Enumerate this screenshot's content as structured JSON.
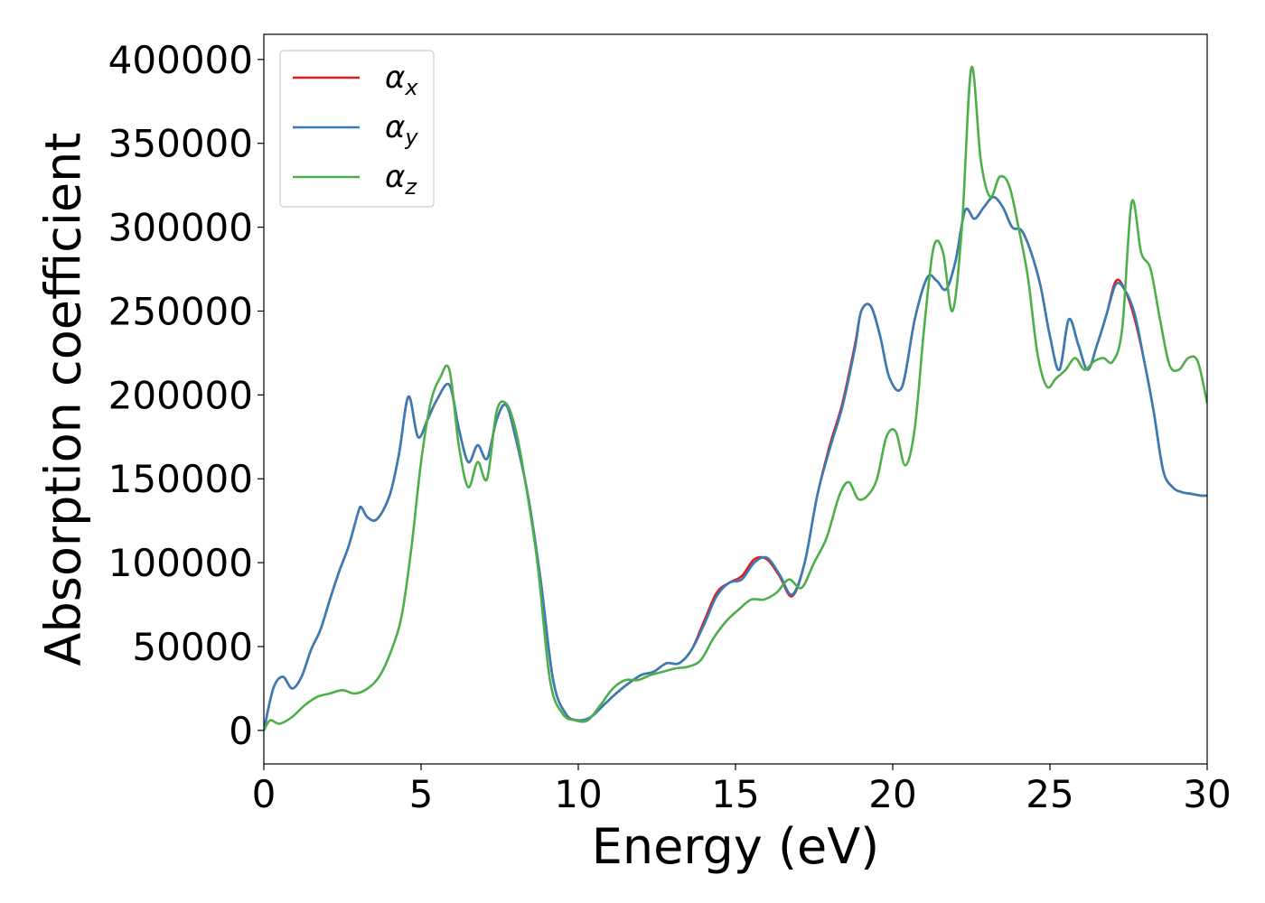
{
  "chart_data": {
    "type": "line",
    "xlabel": "Energy (eV)",
    "ylabel": "Absorption coefficient",
    "xlim": [
      0,
      30
    ],
    "ylim": [
      -20000,
      415000
    ],
    "xticks": [
      0,
      5,
      10,
      15,
      20,
      25,
      30
    ],
    "xtick_labels": [
      "0",
      "5",
      "10",
      "15",
      "20",
      "25",
      "30"
    ],
    "yticks": [
      0,
      50000,
      100000,
      150000,
      200000,
      250000,
      300000,
      350000,
      400000
    ],
    "ytick_labels": [
      "0",
      "50000",
      "100000",
      "150000",
      "200000",
      "250000",
      "300000",
      "350000",
      "400000"
    ],
    "grid": false,
    "legend_position": "top-left",
    "series": [
      {
        "name": "α",
        "subscript": "x",
        "color": "#e41a1c",
        "x": [
          0,
          0.3,
          0.6,
          0.9,
          1.2,
          1.5,
          1.8,
          2.1,
          2.4,
          2.7,
          3.0,
          3.1,
          3.3,
          3.6,
          4.0,
          4.3,
          4.6,
          4.9,
          5.2,
          5.5,
          5.9,
          6.2,
          6.5,
          6.8,
          7.1,
          7.4,
          7.7,
          8.0,
          8.4,
          8.8,
          9.2,
          9.6,
          10.0,
          10.4,
          10.8,
          11.2,
          11.6,
          12.0,
          12.4,
          12.8,
          13.2,
          13.6,
          14.0,
          14.4,
          14.8,
          15.2,
          15.6,
          16.0,
          16.4,
          16.8,
          17.2,
          17.6,
          18.0,
          18.4,
          18.8,
          19.0,
          19.3,
          19.6,
          19.9,
          20.3,
          20.7,
          21.1,
          21.4,
          21.7,
          22.0,
          22.3,
          22.6,
          22.9,
          23.2,
          23.5,
          23.8,
          24.1,
          24.4,
          24.7,
          25.0,
          25.3,
          25.6,
          25.9,
          26.2,
          26.5,
          26.8,
          27.1,
          27.4,
          27.7,
          28.0,
          28.3,
          28.6,
          28.9,
          29.2,
          29.5,
          29.8,
          30.0
        ],
        "values": [
          0,
          25000,
          32000,
          25000,
          32000,
          48000,
          60000,
          78000,
          95000,
          110000,
          130000,
          133000,
          127000,
          126000,
          140000,
          165000,
          199000,
          175000,
          185000,
          197000,
          206000,
          180000,
          160000,
          170000,
          162000,
          185000,
          194000,
          175000,
          140000,
          90000,
          30000,
          10000,
          6000,
          8000,
          15000,
          22000,
          28000,
          33000,
          35000,
          40000,
          40000,
          48000,
          65000,
          82000,
          88000,
          92000,
          102000,
          102000,
          92000,
          80000,
          100000,
          140000,
          170000,
          195000,
          230000,
          250000,
          253000,
          235000,
          210000,
          205000,
          245000,
          270000,
          268000,
          263000,
          280000,
          310000,
          305000,
          312000,
          318000,
          312000,
          300000,
          298000,
          285000,
          265000,
          235000,
          215000,
          245000,
          230000,
          215000,
          230000,
          248000,
          268000,
          262000,
          245000,
          220000,
          190000,
          155000,
          145000,
          142000,
          141000,
          140000,
          140000
        ]
      },
      {
        "name": "α",
        "subscript": "y",
        "color": "#377eb8",
        "x": [
          0,
          0.3,
          0.6,
          0.9,
          1.2,
          1.5,
          1.8,
          2.1,
          2.4,
          2.7,
          3.0,
          3.1,
          3.3,
          3.6,
          4.0,
          4.3,
          4.6,
          4.9,
          5.2,
          5.5,
          5.9,
          6.2,
          6.5,
          6.8,
          7.1,
          7.4,
          7.7,
          8.0,
          8.4,
          8.8,
          9.2,
          9.6,
          10.0,
          10.4,
          10.8,
          11.2,
          11.6,
          12.0,
          12.4,
          12.8,
          13.2,
          13.6,
          14.0,
          14.4,
          14.8,
          15.2,
          15.6,
          16.0,
          16.4,
          16.8,
          17.2,
          17.6,
          18.0,
          18.4,
          18.8,
          19.0,
          19.3,
          19.6,
          19.9,
          20.3,
          20.7,
          21.1,
          21.4,
          21.7,
          22.0,
          22.3,
          22.6,
          22.9,
          23.2,
          23.5,
          23.8,
          24.1,
          24.4,
          24.7,
          25.0,
          25.3,
          25.6,
          25.9,
          26.2,
          26.5,
          26.8,
          27.1,
          27.4,
          27.7,
          28.0,
          28.3,
          28.6,
          28.9,
          29.2,
          29.5,
          29.8,
          30.0
        ],
        "values": [
          0,
          25000,
          32000,
          25000,
          32000,
          48000,
          60000,
          78000,
          95000,
          110000,
          130000,
          133000,
          127000,
          126000,
          140000,
          165000,
          199000,
          175000,
          185000,
          197000,
          206000,
          180000,
          160000,
          170000,
          162000,
          185000,
          194000,
          175000,
          140000,
          90000,
          30000,
          10000,
          6000,
          8000,
          15000,
          22000,
          28000,
          33000,
          35000,
          40000,
          40000,
          48000,
          63000,
          80000,
          88000,
          90000,
          100000,
          103000,
          93000,
          81000,
          100000,
          140000,
          168000,
          193000,
          228000,
          250000,
          253000,
          235000,
          210000,
          205000,
          245000,
          270000,
          268000,
          263000,
          280000,
          310000,
          305000,
          312000,
          318000,
          312000,
          300000,
          298000,
          285000,
          265000,
          235000,
          215000,
          245000,
          230000,
          215000,
          230000,
          248000,
          266000,
          262000,
          248000,
          220000,
          190000,
          155000,
          145000,
          142000,
          141000,
          140000,
          140000
        ]
      },
      {
        "name": "α",
        "subscript": "z",
        "color": "#4daf4a",
        "x": [
          0,
          0.2,
          0.5,
          0.9,
          1.3,
          1.7,
          2.1,
          2.5,
          2.9,
          3.3,
          3.7,
          4.1,
          4.4,
          4.7,
          5.0,
          5.3,
          5.6,
          5.9,
          6.2,
          6.5,
          6.8,
          7.1,
          7.4,
          7.7,
          8.0,
          8.3,
          8.7,
          9.1,
          9.5,
          9.9,
          10.3,
          10.7,
          11.1,
          11.5,
          11.9,
          12.3,
          12.7,
          13.1,
          13.5,
          13.9,
          14.3,
          14.7,
          15.1,
          15.5,
          15.9,
          16.3,
          16.7,
          17.1,
          17.5,
          17.9,
          18.3,
          18.6,
          18.9,
          19.2,
          19.5,
          19.8,
          20.1,
          20.4,
          20.7,
          21.0,
          21.3,
          21.6,
          21.9,
          22.2,
          22.5,
          22.8,
          23.1,
          23.4,
          23.7,
          24.0,
          24.3,
          24.6,
          24.9,
          25.2,
          25.5,
          25.8,
          26.1,
          26.4,
          26.7,
          27.0,
          27.3,
          27.6,
          27.9,
          28.2,
          28.5,
          28.8,
          29.1,
          29.4,
          29.7,
          30.0
        ],
        "values": [
          0,
          6000,
          4000,
          8000,
          15000,
          20000,
          22000,
          24000,
          22000,
          25000,
          33000,
          50000,
          70000,
          110000,
          160000,
          195000,
          210000,
          215000,
          170000,
          145000,
          160000,
          150000,
          190000,
          195000,
          180000,
          150000,
          100000,
          30000,
          10000,
          6000,
          6000,
          15000,
          25000,
          30000,
          30000,
          33000,
          35000,
          37000,
          38000,
          42000,
          55000,
          65000,
          72000,
          78000,
          78000,
          82000,
          90000,
          85000,
          100000,
          115000,
          140000,
          148000,
          138000,
          140000,
          150000,
          175000,
          178000,
          158000,
          180000,
          240000,
          288000,
          285000,
          250000,
          300000,
          395000,
          340000,
          318000,
          330000,
          325000,
          300000,
          270000,
          225000,
          205000,
          210000,
          215000,
          222000,
          215000,
          220000,
          222000,
          220000,
          240000,
          315000,
          285000,
          275000,
          245000,
          218000,
          215000,
          222000,
          220000,
          195000
        ]
      }
    ]
  }
}
